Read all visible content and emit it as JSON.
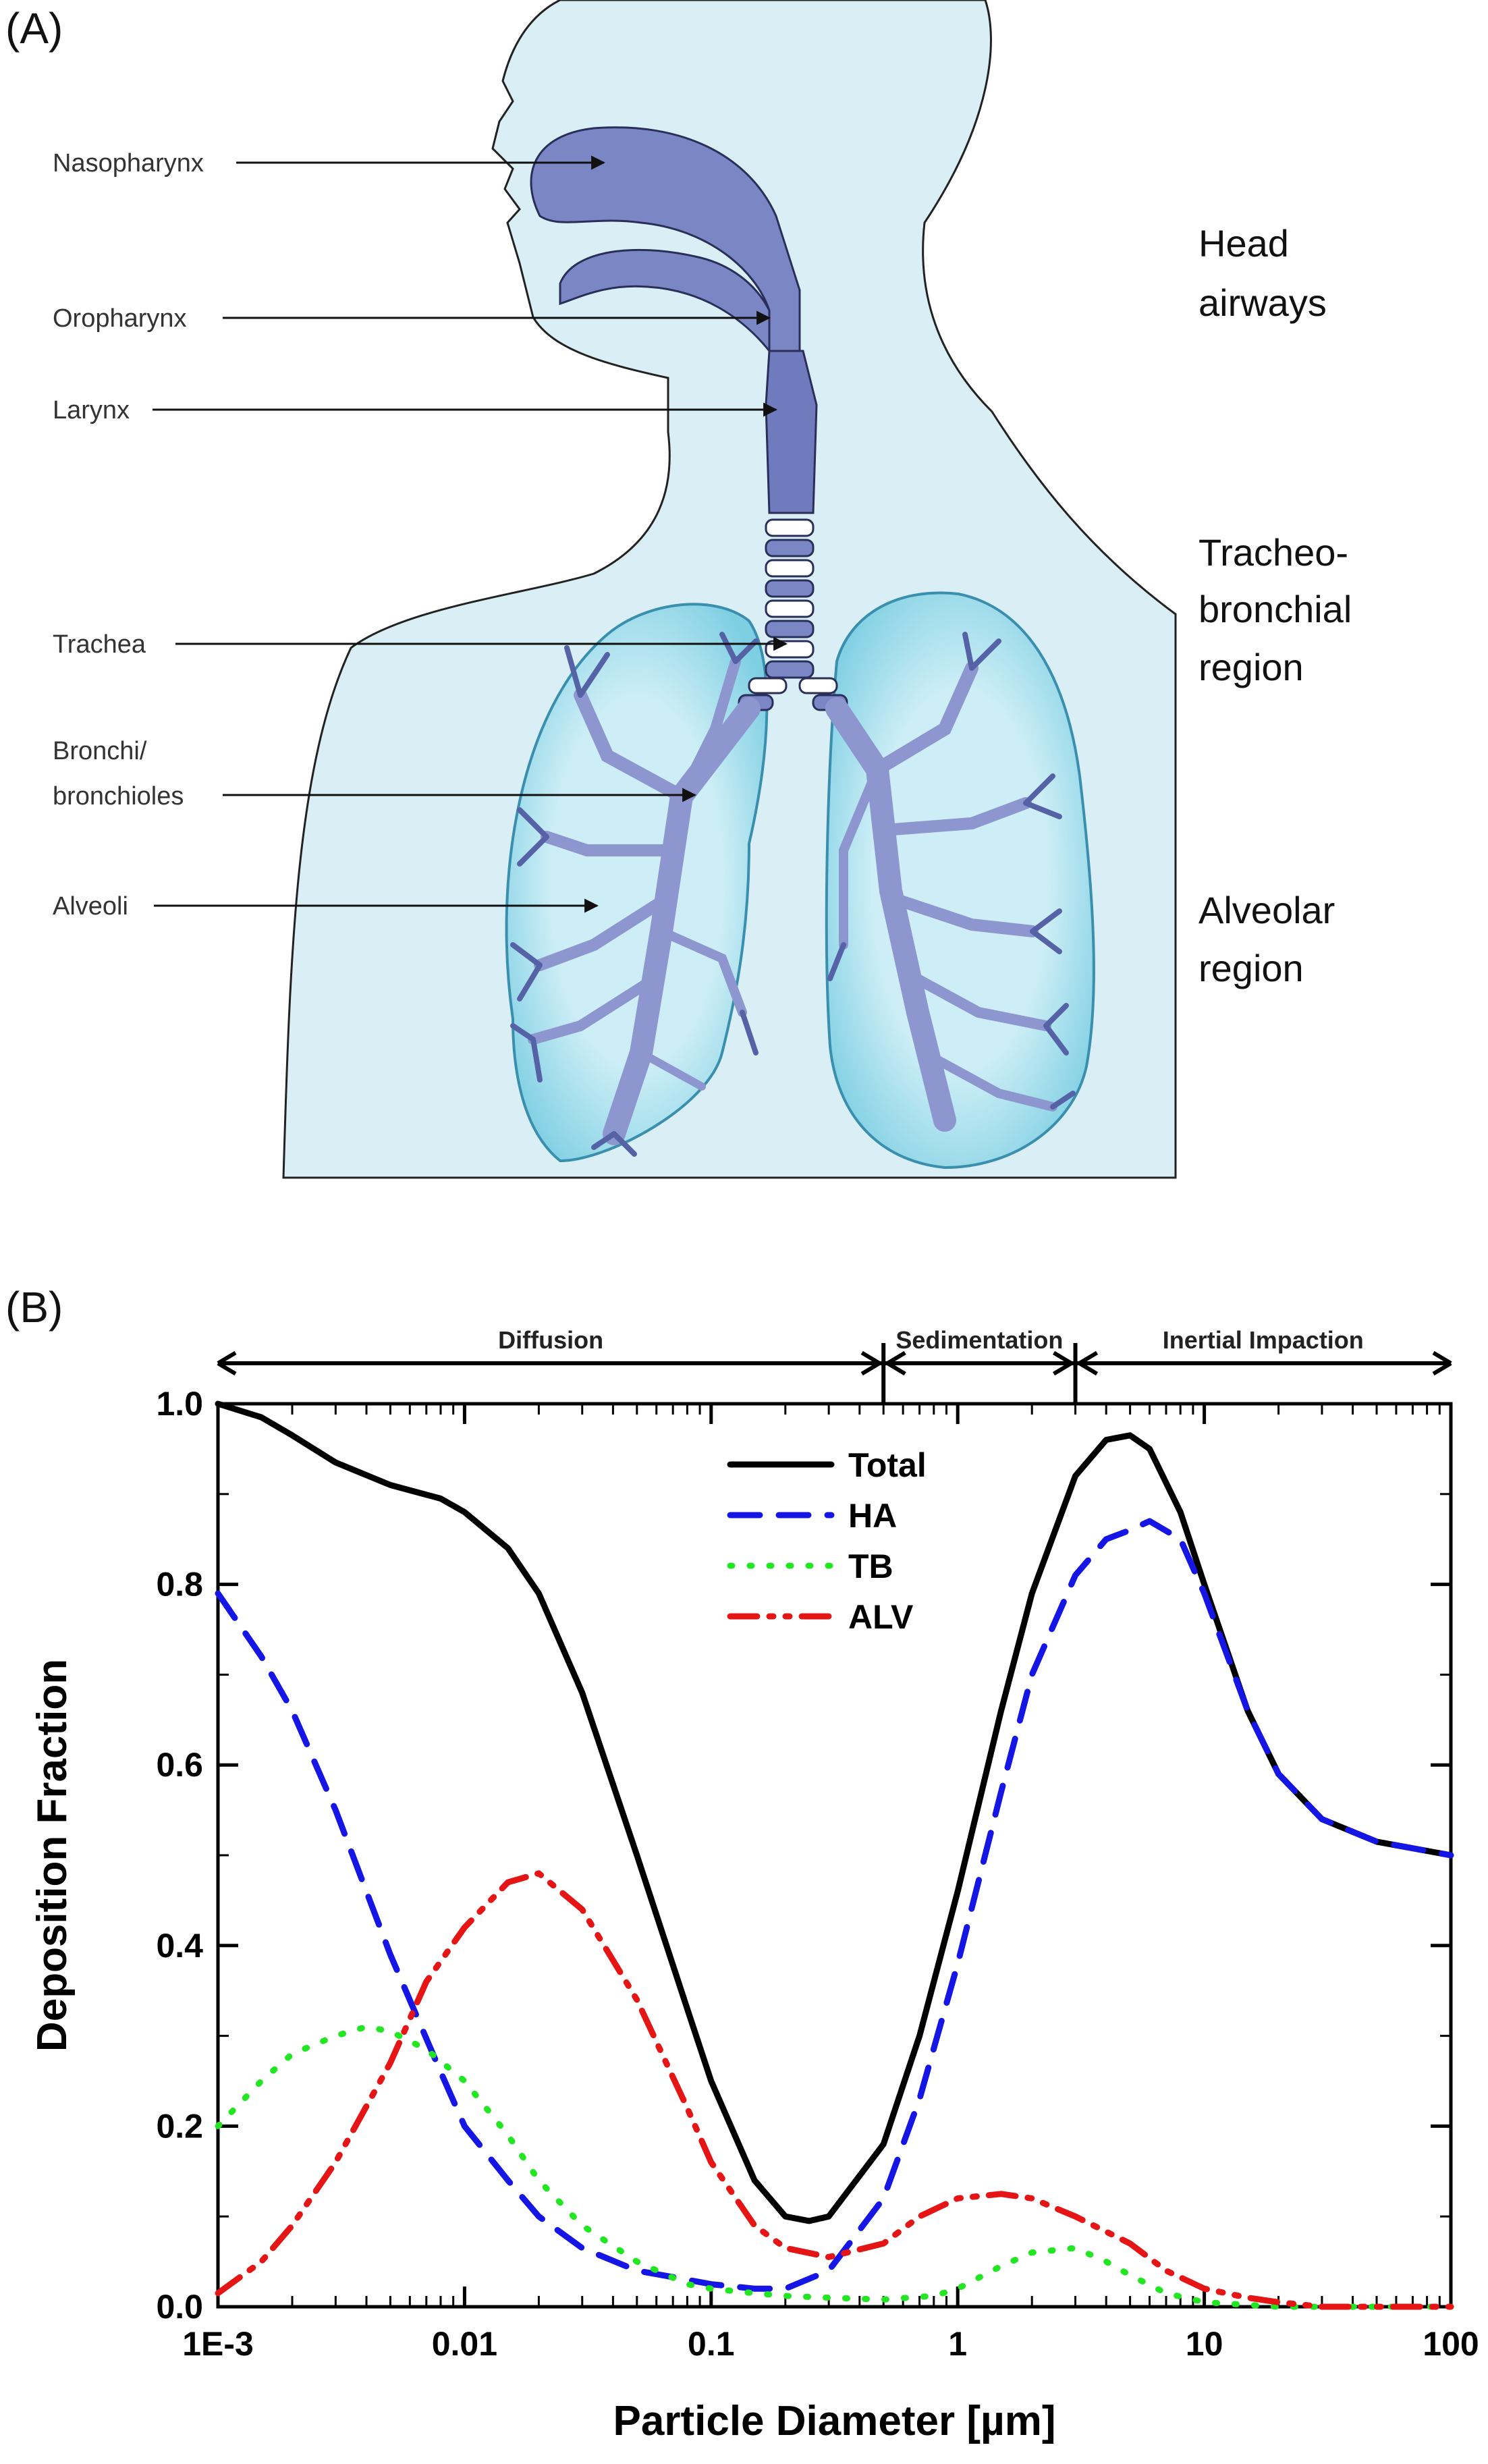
{
  "panel_a": {
    "label": "(A)",
    "structures": [
      {
        "name": "Nasopharynx"
      },
      {
        "name": "Oropharynx"
      },
      {
        "name": "Larynx"
      },
      {
        "name": "Trachea"
      },
      {
        "name": "Bronchi/"
      },
      {
        "name": "bronchioles"
      },
      {
        "name": "Alveoli"
      }
    ],
    "regions": [
      {
        "lines": [
          "Head",
          "airways"
        ]
      },
      {
        "lines": [
          "Tracheo-",
          "bronchial",
          "region"
        ]
      },
      {
        "lines": [
          "Alveolar",
          "region"
        ]
      }
    ]
  },
  "panel_b": {
    "label": "(B)",
    "mechanisms": [
      "Diffusion",
      "Sedimentation",
      "Inertial Impaction"
    ]
  },
  "chart_data": {
    "type": "line",
    "xlabel": "Particle Diameter [µm]",
    "ylabel": "Deposition Fraction",
    "x_scale": "log",
    "xlim": [
      0.001,
      100
    ],
    "ylim": [
      0.0,
      1.0
    ],
    "x_ticks": [
      "1E-3",
      "0.01",
      "0.1",
      "1",
      "10",
      "100"
    ],
    "y_ticks": [
      "0.0",
      "0.2",
      "0.4",
      "0.6",
      "0.8",
      "1.0"
    ],
    "mechanism_ranges": [
      {
        "name": "Diffusion",
        "from": 0.001,
        "to": 0.5
      },
      {
        "name": "Sedimentation",
        "from": 0.5,
        "to": 3
      },
      {
        "name": "Inertial Impaction",
        "from": 3,
        "to": 100
      }
    ],
    "legend_position": "top-center",
    "series": [
      {
        "name": "Total",
        "color": "#000000",
        "style": "solid",
        "x": [
          0.001,
          0.0015,
          0.002,
          0.003,
          0.005,
          0.008,
          0.01,
          0.015,
          0.02,
          0.03,
          0.05,
          0.08,
          0.1,
          0.15,
          0.2,
          0.25,
          0.3,
          0.5,
          0.7,
          1,
          1.5,
          2,
          3,
          4,
          5,
          6,
          8,
          10,
          15,
          20,
          30,
          50,
          100
        ],
        "y": [
          1.0,
          0.985,
          0.965,
          0.935,
          0.91,
          0.895,
          0.88,
          0.84,
          0.79,
          0.68,
          0.5,
          0.33,
          0.25,
          0.14,
          0.1,
          0.095,
          0.1,
          0.18,
          0.3,
          0.46,
          0.66,
          0.79,
          0.92,
          0.96,
          0.965,
          0.95,
          0.88,
          0.8,
          0.66,
          0.59,
          0.54,
          0.515,
          0.5
        ]
      },
      {
        "name": "HA",
        "color": "#1515e6",
        "style": "dashed",
        "x": [
          0.001,
          0.0015,
          0.002,
          0.003,
          0.005,
          0.008,
          0.01,
          0.015,
          0.02,
          0.03,
          0.05,
          0.08,
          0.1,
          0.15,
          0.2,
          0.3,
          0.5,
          0.7,
          1,
          1.5,
          2,
          3,
          4,
          5,
          6,
          8,
          10,
          15,
          20,
          30,
          50,
          100
        ],
        "y": [
          0.79,
          0.72,
          0.66,
          0.55,
          0.39,
          0.26,
          0.2,
          0.14,
          0.1,
          0.065,
          0.04,
          0.03,
          0.025,
          0.02,
          0.02,
          0.04,
          0.12,
          0.23,
          0.38,
          0.57,
          0.7,
          0.81,
          0.85,
          0.86,
          0.87,
          0.85,
          0.79,
          0.66,
          0.59,
          0.54,
          0.515,
          0.5
        ]
      },
      {
        "name": "TB",
        "color": "#22e622",
        "style": "dotted",
        "x": [
          0.001,
          0.0015,
          0.002,
          0.003,
          0.004,
          0.005,
          0.007,
          0.01,
          0.015,
          0.02,
          0.03,
          0.05,
          0.08,
          0.1,
          0.15,
          0.2,
          0.3,
          0.5,
          0.8,
          1,
          1.5,
          2,
          3,
          4,
          5,
          7,
          10,
          20,
          50,
          100
        ],
        "y": [
          0.2,
          0.25,
          0.28,
          0.3,
          0.31,
          0.305,
          0.285,
          0.25,
          0.19,
          0.14,
          0.09,
          0.05,
          0.025,
          0.02,
          0.015,
          0.012,
          0.01,
          0.008,
          0.012,
          0.02,
          0.045,
          0.06,
          0.065,
          0.05,
          0.035,
          0.015,
          0.005,
          0.0,
          0.0,
          0.0
        ]
      },
      {
        "name": "ALV",
        "color": "#e61515",
        "style": "dash-dot-dot",
        "x": [
          0.001,
          0.0015,
          0.002,
          0.003,
          0.005,
          0.007,
          0.01,
          0.015,
          0.02,
          0.03,
          0.05,
          0.08,
          0.1,
          0.15,
          0.2,
          0.3,
          0.5,
          0.7,
          1,
          1.5,
          2,
          3,
          5,
          7,
          10,
          15,
          20,
          30,
          50,
          100
        ],
        "y": [
          0.015,
          0.05,
          0.09,
          0.16,
          0.27,
          0.36,
          0.42,
          0.47,
          0.48,
          0.44,
          0.34,
          0.22,
          0.16,
          0.09,
          0.065,
          0.055,
          0.07,
          0.1,
          0.12,
          0.125,
          0.12,
          0.1,
          0.07,
          0.04,
          0.02,
          0.01,
          0.005,
          0.0,
          0.0,
          0.0
        ]
      }
    ]
  }
}
